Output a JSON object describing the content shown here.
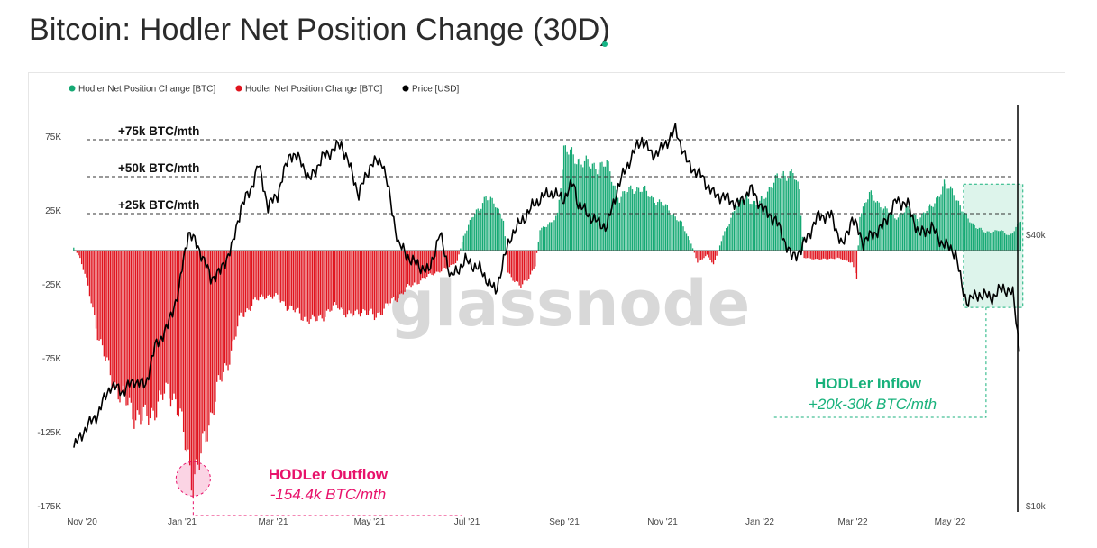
{
  "title": "Bitcoin: Hodler Net Position Change (30D)",
  "watermark": "glassnode",
  "colors": {
    "positive": "#16a974",
    "negative": "#e0141e",
    "price": "#000000",
    "outflow_annotation": "#e8126b",
    "inflow_annotation": "#19b27c"
  },
  "chart_data": {
    "type": "bar",
    "title": "Bitcoin: Hodler Net Position Change (30D)",
    "legend": [
      {
        "label": "Hodler Net Position Change [BTC]",
        "color": "#16a974"
      },
      {
        "label": "Hodler Net Position Change [BTC]",
        "color": "#e0141e"
      },
      {
        "label": "Price [USD]",
        "color": "#000000"
      }
    ],
    "legend_position": "top-left",
    "x_axis": {
      "type": "date",
      "start": "2020-10-25",
      "end": "2022-06-18",
      "ticks": [
        {
          "date": "2020-11-01",
          "label": "Nov '20"
        },
        {
          "date": "2021-01-01",
          "label": "Jan '21"
        },
        {
          "date": "2021-03-01",
          "label": "Mar '21"
        },
        {
          "date": "2021-05-01",
          "label": "May '21"
        },
        {
          "date": "2021-07-01",
          "label": "Jul '21"
        },
        {
          "date": "2021-09-01",
          "label": "Sep '21"
        },
        {
          "date": "2021-11-01",
          "label": "Nov '21"
        },
        {
          "date": "2022-01-01",
          "label": "Jan '22"
        },
        {
          "date": "2022-03-01",
          "label": "Mar '22"
        },
        {
          "date": "2022-05-01",
          "label": "May '22"
        }
      ]
    },
    "y_left": {
      "label": "",
      "range": [
        -175000,
        100000
      ],
      "ticks": [
        {
          "value": 75000,
          "label": "75K"
        },
        {
          "value": 25000,
          "label": "25K"
        },
        {
          "value": -25000,
          "label": "-25K"
        },
        {
          "value": -75000,
          "label": "-75K"
        },
        {
          "value": -125000,
          "label": "-125K"
        },
        {
          "value": -175000,
          "label": "-175K"
        }
      ]
    },
    "y_right": {
      "label": "",
      "scale": "log",
      "range": [
        10000,
        80000
      ],
      "ticks": [
        {
          "value": 40000,
          "label": "$40k"
        },
        {
          "value": 10000,
          "label": "$10k"
        }
      ]
    },
    "reference_lines": [
      {
        "value": 75000,
        "label": "+75k BTC/mth"
      },
      {
        "value": 50000,
        "label": "+50k BTC/mth"
      },
      {
        "value": 25000,
        "label": "+25k BTC/mth"
      }
    ],
    "net_position_series": {
      "name": "Hodler Net Position Change [BTC]",
      "anchors": [
        [
          "2020-10-28",
          2000
        ],
        [
          "2020-11-01",
          -5000
        ],
        [
          "2020-11-05",
          -20000
        ],
        [
          "2020-11-12",
          -55000
        ],
        [
          "2020-11-20",
          -85000
        ],
        [
          "2020-11-28",
          -100000
        ],
        [
          "2020-12-05",
          -110000
        ],
        [
          "2020-12-12",
          -115000
        ],
        [
          "2020-12-19",
          -105000
        ],
        [
          "2020-12-26",
          -95000
        ],
        [
          "2020-12-31",
          -100000
        ],
        [
          "2021-01-04",
          -120000
        ],
        [
          "2021-01-08",
          -140000
        ],
        [
          "2021-01-11",
          -154400
        ],
        [
          "2021-01-15",
          -145000
        ],
        [
          "2021-01-20",
          -120000
        ],
        [
          "2021-01-26",
          -95000
        ],
        [
          "2021-02-02",
          -75000
        ],
        [
          "2021-02-10",
          -45000
        ],
        [
          "2021-02-18",
          -35000
        ],
        [
          "2021-02-26",
          -30000
        ],
        [
          "2021-03-05",
          -32000
        ],
        [
          "2021-03-12",
          -38000
        ],
        [
          "2021-03-20",
          -44000
        ],
        [
          "2021-03-28",
          -48000
        ],
        [
          "2021-04-05",
          -42000
        ],
        [
          "2021-04-12",
          -37000
        ],
        [
          "2021-04-20",
          -45000
        ],
        [
          "2021-04-27",
          -40000
        ],
        [
          "2021-05-05",
          -45000
        ],
        [
          "2021-05-10",
          -40000
        ],
        [
          "2021-05-18",
          -33000
        ],
        [
          "2021-05-26",
          -25000
        ],
        [
          "2021-06-03",
          -20000
        ],
        [
          "2021-06-12",
          -15000
        ],
        [
          "2021-06-20",
          -12000
        ],
        [
          "2021-06-26",
          -7000
        ],
        [
          "2021-06-30",
          10000
        ],
        [
          "2021-07-05",
          22000
        ],
        [
          "2021-07-10",
          28000
        ],
        [
          "2021-07-14",
          38000
        ],
        [
          "2021-07-20",
          30000
        ],
        [
          "2021-07-25",
          22000
        ],
        [
          "2021-07-28",
          -15000
        ],
        [
          "2021-08-05",
          -25000
        ],
        [
          "2021-08-10",
          -18000
        ],
        [
          "2021-08-14",
          -10000
        ],
        [
          "2021-08-17",
          15000
        ],
        [
          "2021-08-24",
          18000
        ],
        [
          "2021-08-28",
          25000
        ],
        [
          "2021-09-01",
          68000
        ],
        [
          "2021-09-10",
          62000
        ],
        [
          "2021-09-18",
          57000
        ],
        [
          "2021-09-28",
          58000
        ],
        [
          "2021-10-06",
          35000
        ],
        [
          "2021-10-14",
          43000
        ],
        [
          "2021-10-22",
          40000
        ],
        [
          "2021-10-30",
          33000
        ],
        [
          "2021-11-06",
          28000
        ],
        [
          "2021-11-14",
          18000
        ],
        [
          "2021-11-20",
          5000
        ],
        [
          "2021-11-24",
          -8000
        ],
        [
          "2021-11-30",
          -3000
        ],
        [
          "2021-12-04",
          -10000
        ],
        [
          "2021-12-10",
          10000
        ],
        [
          "2021-12-16",
          25000
        ],
        [
          "2021-12-24",
          38000
        ],
        [
          "2021-12-31",
          30000
        ],
        [
          "2022-01-08",
          42000
        ],
        [
          "2022-01-16",
          52000
        ],
        [
          "2022-01-23",
          52000
        ],
        [
          "2022-01-27",
          40000
        ],
        [
          "2022-01-30",
          -5000
        ],
        [
          "2022-02-10",
          -6000
        ],
        [
          "2022-02-20",
          -5000
        ],
        [
          "2022-03-01",
          -8000
        ],
        [
          "2022-03-04",
          -18000
        ],
        [
          "2022-03-06",
          25000
        ],
        [
          "2022-03-12",
          38000
        ],
        [
          "2022-03-20",
          30000
        ],
        [
          "2022-03-28",
          22000
        ],
        [
          "2022-04-04",
          28000
        ],
        [
          "2022-04-12",
          22000
        ],
        [
          "2022-04-20",
          30000
        ],
        [
          "2022-04-28",
          44000
        ],
        [
          "2022-05-04",
          40000
        ],
        [
          "2022-05-10",
          25000
        ],
        [
          "2022-05-16",
          18000
        ],
        [
          "2022-05-24",
          12000
        ],
        [
          "2022-06-01",
          14000
        ],
        [
          "2022-06-08",
          10000
        ],
        [
          "2022-06-15",
          20000
        ]
      ]
    },
    "price_series": {
      "name": "Price [USD]",
      "anchors": [
        [
          "2020-10-28",
          13500
        ],
        [
          "2020-11-05",
          15000
        ],
        [
          "2020-11-12",
          16000
        ],
        [
          "2020-11-20",
          18500
        ],
        [
          "2020-11-28",
          18000
        ],
        [
          "2020-12-05",
          19000
        ],
        [
          "2020-12-12",
          18500
        ],
        [
          "2020-12-18",
          22500
        ],
        [
          "2020-12-26",
          25000
        ],
        [
          "2021-01-02",
          30000
        ],
        [
          "2021-01-08",
          40500
        ],
        [
          "2021-01-15",
          37000
        ],
        [
          "2021-01-22",
          32000
        ],
        [
          "2021-01-28",
          33000
        ],
        [
          "2021-02-05",
          38000
        ],
        [
          "2021-02-10",
          46000
        ],
        [
          "2021-02-16",
          50000
        ],
        [
          "2021-02-21",
          57000
        ],
        [
          "2021-02-27",
          46000
        ],
        [
          "2021-03-05",
          49000
        ],
        [
          "2021-03-13",
          60500
        ],
        [
          "2021-03-20",
          58000
        ],
        [
          "2021-03-25",
          52500
        ],
        [
          "2021-04-02",
          59000
        ],
        [
          "2021-04-14",
          63500
        ],
        [
          "2021-04-25",
          49000
        ],
        [
          "2021-05-03",
          57500
        ],
        [
          "2021-05-10",
          58000
        ],
        [
          "2021-05-16",
          45000
        ],
        [
          "2021-05-20",
          38000
        ],
        [
          "2021-05-28",
          35000
        ],
        [
          "2021-06-08",
          33000
        ],
        [
          "2021-06-15",
          40000
        ],
        [
          "2021-06-22",
          32000
        ],
        [
          "2021-07-01",
          35000
        ],
        [
          "2021-07-10",
          33500
        ],
        [
          "2021-07-20",
          29800
        ],
        [
          "2021-07-30",
          40000
        ],
        [
          "2021-08-08",
          44000
        ],
        [
          "2021-08-14",
          47000
        ],
        [
          "2021-08-23",
          49500
        ],
        [
          "2021-09-01",
          48000
        ],
        [
          "2021-09-07",
          52000
        ],
        [
          "2021-09-10",
          46500
        ],
        [
          "2021-09-20",
          43000
        ],
        [
          "2021-09-28",
          41500
        ],
        [
          "2021-10-05",
          51000
        ],
        [
          "2021-10-15",
          61000
        ],
        [
          "2021-10-20",
          65000
        ],
        [
          "2021-10-26",
          60000
        ],
        [
          "2021-11-01",
          61500
        ],
        [
          "2021-11-10",
          68000
        ],
        [
          "2021-11-18",
          57000
        ],
        [
          "2021-11-26",
          54000
        ],
        [
          "2021-12-04",
          49000
        ],
        [
          "2021-12-10",
          48500
        ],
        [
          "2021-12-20",
          46500
        ],
        [
          "2021-12-27",
          50500
        ],
        [
          "2022-01-05",
          45000
        ],
        [
          "2022-01-12",
          43000
        ],
        [
          "2022-01-22",
          35500
        ],
        [
          "2022-01-28",
          37000
        ],
        [
          "2022-02-08",
          44000
        ],
        [
          "2022-02-16",
          44000
        ],
        [
          "2022-02-23",
          37500
        ],
        [
          "2022-03-01",
          43500
        ],
        [
          "2022-03-08",
          38500
        ],
        [
          "2022-03-20",
          41500
        ],
        [
          "2022-03-29",
          47500
        ],
        [
          "2022-04-05",
          46500
        ],
        [
          "2022-04-12",
          40000
        ],
        [
          "2022-04-20",
          41500
        ],
        [
          "2022-04-26",
          38500
        ],
        [
          "2022-05-05",
          36500
        ],
        [
          "2022-05-09",
          30500
        ],
        [
          "2022-05-12",
          28500
        ],
        [
          "2022-05-20",
          29500
        ],
        [
          "2022-05-28",
          29000
        ],
        [
          "2022-06-04",
          30500
        ],
        [
          "2022-06-10",
          29500
        ],
        [
          "2022-06-14",
          22500
        ]
      ]
    },
    "annotations": [
      {
        "title": "HODLer Outflow",
        "value": "-154.4k  BTC/mth",
        "date": "2021-01-11",
        "net_position": -154400
      },
      {
        "title": "HODLer Inflow",
        "value": "+20k-30k BTC/mth",
        "date_range": [
          "2022-05-10",
          "2022-06-18"
        ]
      }
    ]
  }
}
